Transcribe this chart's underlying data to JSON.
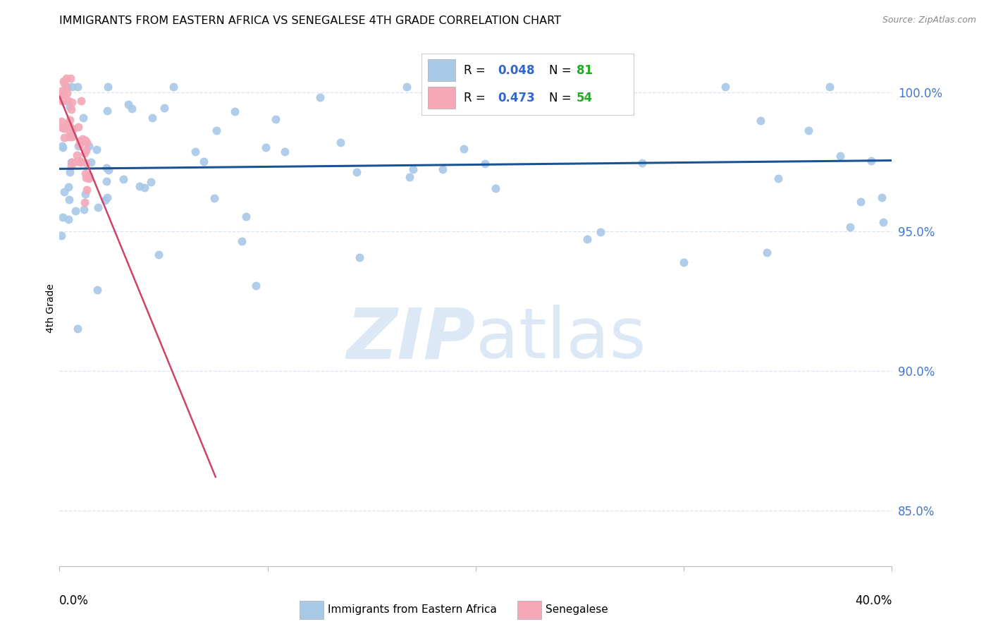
{
  "title": "IMMIGRANTS FROM EASTERN AFRICA VS SENEGALESE 4TH GRADE CORRELATION CHART",
  "source": "Source: ZipAtlas.com",
  "ylabel": "4th Grade",
  "xlim": [
    0.0,
    0.4
  ],
  "ylim": [
    0.83,
    1.015
  ],
  "yticks": [
    0.85,
    0.9,
    0.95,
    1.0
  ],
  "ytick_labels": [
    "85.0%",
    "90.0%",
    "95.0%",
    "100.0%"
  ],
  "blue_color": "#a8c8e8",
  "pink_color": "#f4a8b8",
  "blue_line_color": "#1a5296",
  "pink_line_color": "#cc4466",
  "grid_color": "#d8e4f0",
  "watermark_color": "#dce8f5",
  "right_tick_color": "#4477cc",
  "legend_r_color": "#3366cc",
  "legend_n_color": "#22aa22",
  "blue_trend_x": [
    0.0,
    0.4
  ],
  "blue_trend_y": [
    0.9725,
    0.9755
  ],
  "pink_trend_x": [
    0.0,
    0.075
  ],
  "pink_trend_y": [
    0.9985,
    0.862
  ]
}
